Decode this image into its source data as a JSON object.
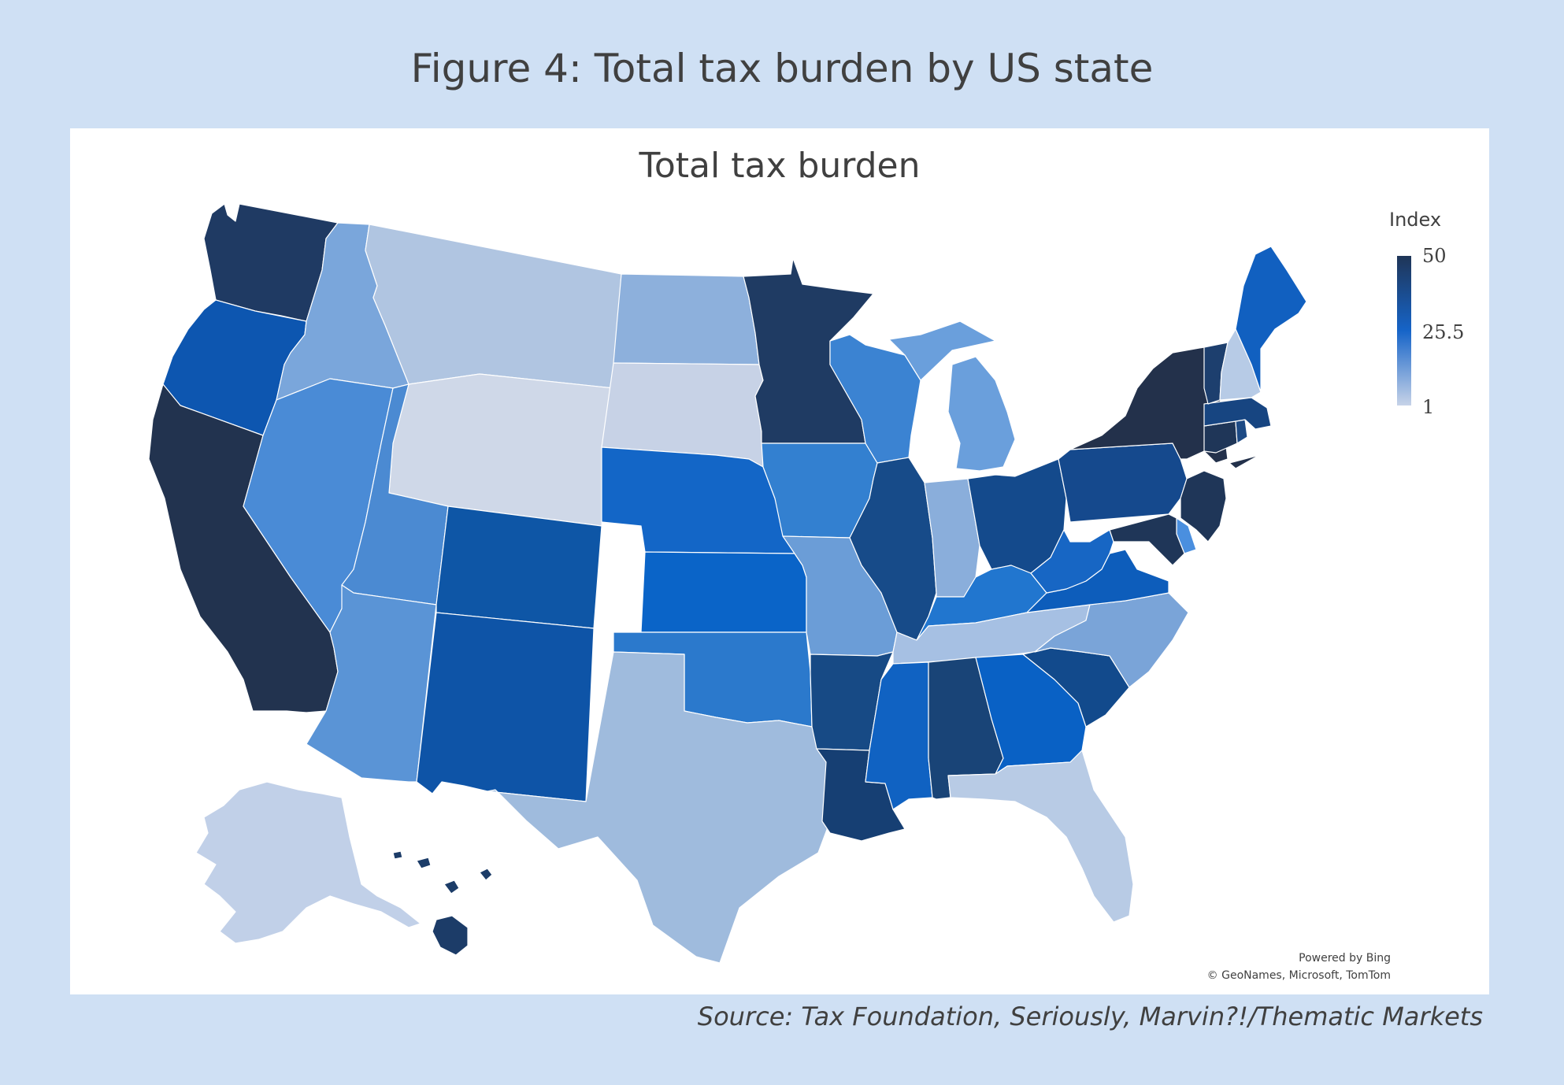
{
  "figure_title": "Figure 4: Total tax burden by US state",
  "map_title": "Total tax burden",
  "legend": {
    "title": "Index",
    "max_label": "50",
    "mid_label": "25.5",
    "min_label": "1",
    "colors": {
      "high": "#1f3557",
      "mid": "#1664c8",
      "low": "#c7d3e8"
    }
  },
  "attribution": {
    "powered_by": "Powered by Bing",
    "copyright": "© GeoNames, Microsoft, TomTom"
  },
  "source": "Source: Tax Foundation, Seriously, Marvin?!/Thematic Markets",
  "states": [
    {
      "id": "WA",
      "color": "#1f3a63"
    },
    {
      "id": "OR",
      "color": "#0d56b0"
    },
    {
      "id": "CA",
      "color": "#22334f"
    },
    {
      "id": "ID",
      "color": "#7aa6db"
    },
    {
      "id": "NV",
      "color": "#4a8bd6"
    },
    {
      "id": "MT",
      "color": "#b0c5e1"
    },
    {
      "id": "WY",
      "color": "#cfd8e8"
    },
    {
      "id": "UT",
      "color": "#4b8ad2"
    },
    {
      "id": "AZ",
      "color": "#5a94d6"
    },
    {
      "id": "CO",
      "color": "#0e56a6"
    },
    {
      "id": "NM",
      "color": "#0e54a7"
    },
    {
      "id": "ND",
      "color": "#8db0dc"
    },
    {
      "id": "SD",
      "color": "#c7d2e6"
    },
    {
      "id": "NE",
      "color": "#1366c7"
    },
    {
      "id": "KS",
      "color": "#0a64c8"
    },
    {
      "id": "OK",
      "color": "#2b79cc"
    },
    {
      "id": "TX",
      "color": "#9fbbdd"
    },
    {
      "id": "MN",
      "color": "#1f3b63"
    },
    {
      "id": "IA",
      "color": "#3380d0"
    },
    {
      "id": "MO",
      "color": "#6b9dd7"
    },
    {
      "id": "AR",
      "color": "#174a85"
    },
    {
      "id": "LA",
      "color": "#163f73"
    },
    {
      "id": "WI",
      "color": "#3b83d2"
    },
    {
      "id": "IL",
      "color": "#174b89"
    },
    {
      "id": "MI",
      "color": "#6a9fdc"
    },
    {
      "id": "IN",
      "color": "#8aaedb"
    },
    {
      "id": "OH",
      "color": "#144a8c"
    },
    {
      "id": "KY",
      "color": "#2176cf"
    },
    {
      "id": "TN",
      "color": "#a6c0e3"
    },
    {
      "id": "MS",
      "color": "#1062c2"
    },
    {
      "id": "AL",
      "color": "#194477"
    },
    {
      "id": "GA",
      "color": "#0961c5"
    },
    {
      "id": "FL",
      "color": "#b8cbe5"
    },
    {
      "id": "SC",
      "color": "#124a8c"
    },
    {
      "id": "NC",
      "color": "#7aa4d8"
    },
    {
      "id": "VA",
      "color": "#0d5dbb"
    },
    {
      "id": "WV",
      "color": "#1766c4"
    },
    {
      "id": "PA",
      "color": "#15498d"
    },
    {
      "id": "NY",
      "color": "#23314b"
    },
    {
      "id": "NJ",
      "color": "#1f3658"
    },
    {
      "id": "DE",
      "color": "#4a8fdf"
    },
    {
      "id": "MD",
      "color": "#1f3658"
    },
    {
      "id": "CT",
      "color": "#1f3658"
    },
    {
      "id": "RI",
      "color": "#1d4a85"
    },
    {
      "id": "MA",
      "color": "#174581"
    },
    {
      "id": "VT",
      "color": "#1d3f6e"
    },
    {
      "id": "NH",
      "color": "#b7cbe6"
    },
    {
      "id": "ME",
      "color": "#1160c0"
    },
    {
      "id": "AK",
      "color": "#c1d0e8"
    },
    {
      "id": "HI",
      "color": "#1c3c68"
    }
  ]
}
